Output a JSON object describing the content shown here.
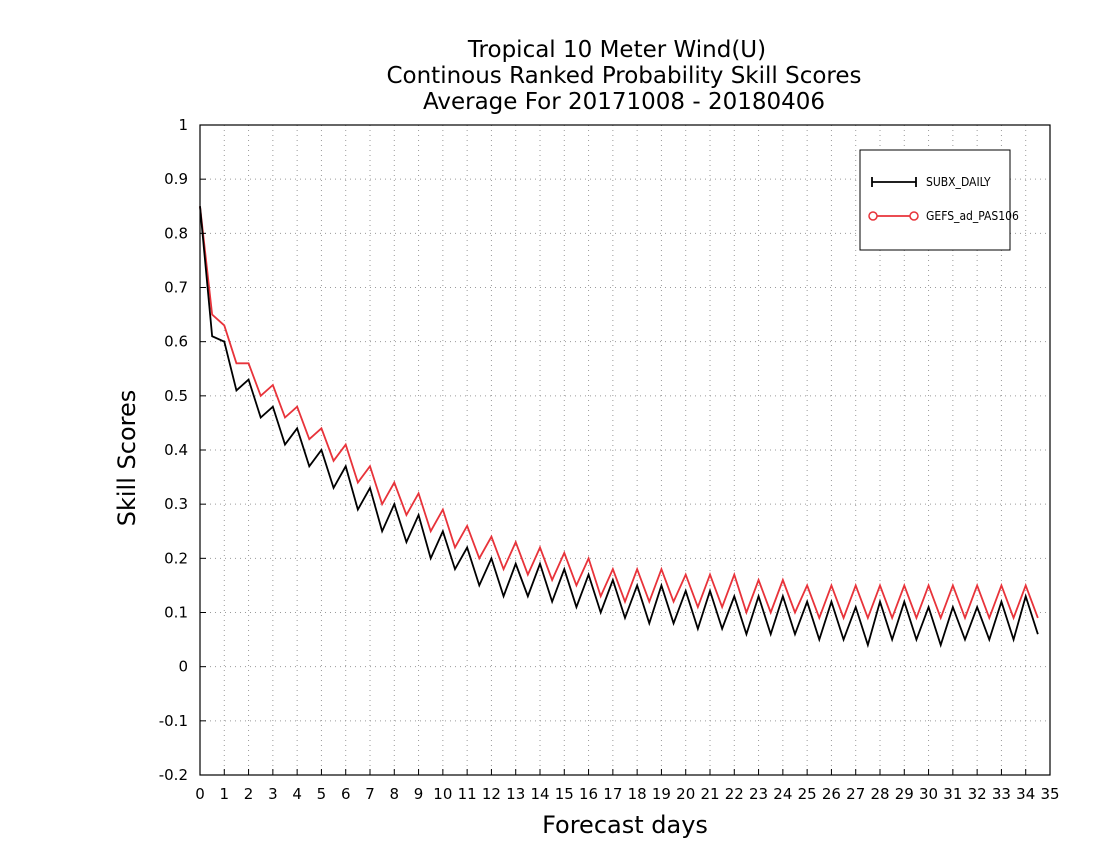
{
  "chart_data": {
    "type": "line",
    "title": [
      "Tropical 10 Meter Wind(U)",
      "Continous Ranked Probability Skill Scores",
      "Average For 20171008 - 20180406"
    ],
    "xlabel": "Forecast days",
    "ylabel": "Skill Scores",
    "xlim": [
      0,
      35
    ],
    "ylim": [
      -0.2,
      1
    ],
    "x_ticks": [
      "0",
      "1",
      "2",
      "3",
      "4",
      "5",
      "6",
      "7",
      "8",
      "9",
      "10",
      "11",
      "12",
      "13",
      "14",
      "15",
      "16",
      "17",
      "18",
      "19",
      "20",
      "21",
      "22",
      "23",
      "24",
      "25",
      "26",
      "27",
      "28",
      "29",
      "30",
      "31",
      "32",
      "33",
      "34",
      "35"
    ],
    "y_ticks": [
      "1",
      "0.9",
      "0.8",
      "0.7",
      "0.6",
      "0.5",
      "0.4",
      "0.3",
      "0.2",
      "0.1",
      "0",
      "-0.1",
      "-0.2"
    ],
    "grid": true,
    "legend_position": "top-right",
    "x_step": 0.5,
    "series": [
      {
        "name": "SUBX_DAILY",
        "color": "#000000",
        "marker": "plus",
        "values": [
          0.85,
          0.61,
          0.6,
          0.51,
          0.53,
          0.46,
          0.48,
          0.41,
          0.44,
          0.37,
          0.4,
          0.33,
          0.37,
          0.29,
          0.33,
          0.25,
          0.3,
          0.23,
          0.28,
          0.2,
          0.25,
          0.18,
          0.22,
          0.15,
          0.2,
          0.13,
          0.19,
          0.13,
          0.19,
          0.12,
          0.18,
          0.11,
          0.17,
          0.1,
          0.16,
          0.09,
          0.15,
          0.08,
          0.15,
          0.08,
          0.14,
          0.07,
          0.14,
          0.07,
          0.13,
          0.06,
          0.13,
          0.06,
          0.13,
          0.06,
          0.12,
          0.05,
          0.12,
          0.05,
          0.11,
          0.04,
          0.12,
          0.05,
          0.12,
          0.05,
          0.11,
          0.04,
          0.11,
          0.05,
          0.11,
          0.05,
          0.12,
          0.05,
          0.13,
          0.06
        ]
      },
      {
        "name": "GEFS_ad_PAS106",
        "color": "#e8333a",
        "marker": "circle",
        "values": [
          0.85,
          0.65,
          0.63,
          0.56,
          0.56,
          0.5,
          0.52,
          0.46,
          0.48,
          0.42,
          0.44,
          0.38,
          0.41,
          0.34,
          0.37,
          0.3,
          0.34,
          0.28,
          0.32,
          0.25,
          0.29,
          0.22,
          0.26,
          0.2,
          0.24,
          0.18,
          0.23,
          0.17,
          0.22,
          0.16,
          0.21,
          0.15,
          0.2,
          0.13,
          0.18,
          0.12,
          0.18,
          0.12,
          0.18,
          0.12,
          0.17,
          0.11,
          0.17,
          0.11,
          0.17,
          0.1,
          0.16,
          0.1,
          0.16,
          0.1,
          0.15,
          0.09,
          0.15,
          0.09,
          0.15,
          0.09,
          0.15,
          0.09,
          0.15,
          0.09,
          0.15,
          0.09,
          0.15,
          0.09,
          0.15,
          0.09,
          0.15,
          0.09,
          0.15,
          0.09
        ]
      }
    ]
  }
}
